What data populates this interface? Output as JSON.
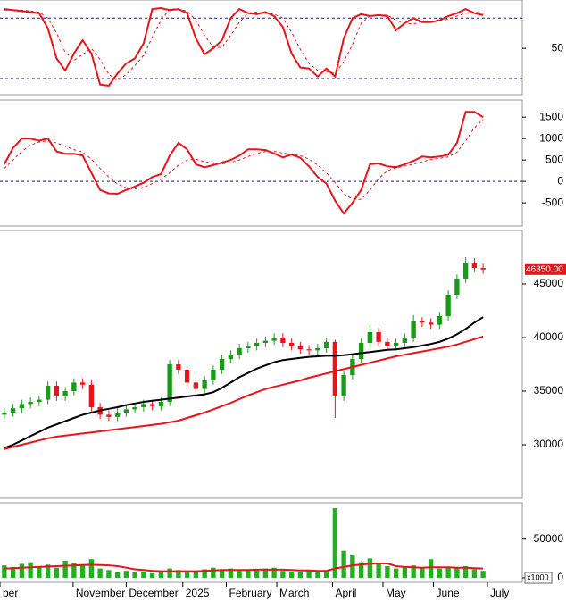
{
  "chart_data": [
    {
      "type": "line",
      "x": [
        0,
        1,
        2,
        3,
        4,
        5,
        6,
        7,
        8,
        9,
        10,
        11,
        12,
        13,
        14,
        15,
        16,
        17,
        18,
        19,
        20,
        21,
        22,
        23,
        24,
        25,
        26,
        27,
        28,
        29,
        30,
        31,
        32,
        33,
        34,
        35,
        36,
        37,
        38,
        39,
        40,
        41,
        42,
        43,
        44,
        45,
        46,
        47,
        48,
        49,
        50,
        51,
        52,
        53,
        54,
        55
      ],
      "xlim": [
        -0.5,
        59.5
      ],
      "ylim": [
        4,
        98
      ],
      "yticks": [
        50
      ],
      "reference_lines": [
        20,
        80
      ],
      "series": [
        {
          "color": "#e8141c",
          "style": "solid",
          "values": [
            89,
            88,
            87,
            86,
            85,
            70,
            40,
            28,
            45,
            58,
            45,
            14,
            13,
            25,
            35,
            40,
            55,
            89,
            90,
            88,
            89,
            85,
            60,
            44,
            50,
            58,
            80,
            89,
            85,
            84,
            86,
            82,
            71,
            45,
            31,
            30,
            22,
            30,
            22,
            60,
            80,
            84,
            82,
            83,
            82,
            68,
            75,
            80,
            76,
            76,
            78,
            82,
            85,
            89,
            85,
            83
          ]
        },
        {
          "color": "#e8141c",
          "style": "dashed",
          "values": [
            88,
            88,
            88,
            87,
            86,
            80,
            65,
            46,
            38,
            44,
            50,
            39,
            24,
            18,
            24,
            33,
            43,
            61,
            78,
            89,
            89,
            87,
            78,
            63,
            51,
            51,
            63,
            76,
            85,
            86,
            85,
            84,
            80,
            66,
            49,
            35,
            28,
            27,
            25,
            37,
            54,
            75,
            82,
            83,
            83,
            78,
            75,
            74,
            77,
            77,
            77,
            79,
            82,
            85,
            86,
            85
          ]
        }
      ]
    },
    {
      "type": "line",
      "x": [
        0,
        1,
        2,
        3,
        4,
        5,
        6,
        7,
        8,
        9,
        10,
        11,
        12,
        13,
        14,
        15,
        16,
        17,
        18,
        19,
        20,
        21,
        22,
        23,
        24,
        25,
        26,
        27,
        28,
        29,
        30,
        31,
        32,
        33,
        34,
        35,
        36,
        37,
        38,
        39,
        40,
        41,
        42,
        43,
        44,
        45,
        46,
        47,
        48,
        49,
        50,
        51,
        52,
        53,
        54,
        55
      ],
      "xlim": [
        -0.5,
        59.5
      ],
      "ylim": [
        -1040,
        1900
      ],
      "yticks": [
        -500,
        0,
        500,
        1000,
        1500
      ],
      "reference_lines": [
        0
      ],
      "series": [
        {
          "color": "#e8141c",
          "style": "solid",
          "values": [
            400,
            780,
            1000,
            1000,
            950,
            1000,
            700,
            645,
            645,
            600,
            200,
            -200,
            -280,
            -290,
            -200,
            -120,
            -30,
            100,
            170,
            600,
            900,
            750,
            400,
            330,
            380,
            440,
            500,
            600,
            750,
            750,
            730,
            650,
            560,
            625,
            550,
            350,
            100,
            -50,
            -450,
            -750,
            -500,
            -200,
            400,
            420,
            350,
            330,
            400,
            480,
            580,
            560,
            580,
            620,
            900,
            1625,
            1625,
            1500
          ]
        },
        {
          "color": "#e8141c",
          "style": "dashed",
          "values": [
            300,
            500,
            700,
            850,
            920,
            950,
            900,
            820,
            740,
            680,
            520,
            300,
            100,
            -60,
            -150,
            -180,
            -140,
            -50,
            50,
            200,
            380,
            500,
            520,
            460,
            420,
            410,
            440,
            500,
            580,
            650,
            700,
            700,
            660,
            630,
            600,
            520,
            380,
            200,
            -30,
            -280,
            -420,
            -420,
            -200,
            60,
            250,
            320,
            360,
            400,
            460,
            510,
            540,
            570,
            680,
            950,
            1250,
            1450
          ]
        }
      ]
    },
    {
      "type": "candlestick",
      "x": [
        0,
        1,
        2,
        3,
        4,
        5,
        6,
        7,
        8,
        9,
        10,
        11,
        12,
        13,
        14,
        15,
        16,
        17,
        18,
        19,
        20,
        21,
        22,
        23,
        24,
        25,
        26,
        27,
        28,
        29,
        30,
        31,
        32,
        33,
        34,
        35,
        36,
        37,
        38,
        39,
        40,
        41,
        42,
        43,
        44,
        45,
        46,
        47,
        48,
        49,
        50,
        51,
        52,
        53,
        54,
        55
      ],
      "xlim": [
        -0.5,
        59.5
      ],
      "ylim": [
        25000,
        50000
      ],
      "yticks": [
        30000,
        35000,
        40000,
        45000
      ],
      "up_color": "#1a9a1a",
      "down_color": "#e8141c",
      "open": [
        32800,
        33000,
        33400,
        33800,
        34000,
        34200,
        35500,
        34500,
        35000,
        35800,
        35600,
        33500,
        32800,
        32600,
        33000,
        33300,
        33500,
        33800,
        33600,
        34000,
        37500,
        37000,
        35800,
        35200,
        36000,
        37000,
        38000,
        38400,
        39000,
        39200,
        39500,
        39700,
        40000,
        39500,
        39200,
        38900,
        38800,
        39000,
        39600,
        34500,
        36500,
        38000,
        39500,
        40500,
        39600,
        39200,
        39500,
        40000,
        41500,
        41400,
        41200,
        42000,
        44000,
        45500,
        47000,
        46500
      ],
      "high": [
        33400,
        33800,
        34200,
        34400,
        34600,
        35900,
        35900,
        35400,
        36200,
        36200,
        36000,
        33900,
        33200,
        33400,
        33700,
        33900,
        34200,
        34200,
        34400,
        37900,
        37900,
        37400,
        36200,
        36400,
        37400,
        38400,
        38800,
        39400,
        39600,
        39900,
        40100,
        40400,
        40400,
        39900,
        39600,
        39300,
        39400,
        40000,
        39800,
        36900,
        38400,
        39900,
        41200,
        40900,
        40000,
        39900,
        40400,
        42100,
        41900,
        41800,
        42400,
        44400,
        45900,
        47500,
        47400,
        46900
      ],
      "low": [
        32400,
        32600,
        33000,
        33400,
        33600,
        33800,
        34100,
        34100,
        34600,
        35200,
        33100,
        32400,
        32200,
        32200,
        32600,
        32900,
        33100,
        33200,
        33200,
        33600,
        36600,
        35400,
        34800,
        34800,
        35600,
        36600,
        37600,
        38000,
        38600,
        38800,
        39100,
        39300,
        39100,
        38800,
        38500,
        38400,
        38400,
        38600,
        32500,
        34100,
        36100,
        37600,
        39100,
        39200,
        38800,
        38800,
        39100,
        39600,
        41000,
        40800,
        40800,
        41600,
        43600,
        45100,
        46100,
        45950
      ],
      "close": [
        33000,
        33400,
        33800,
        34000,
        34200,
        35500,
        34500,
        35000,
        35800,
        35600,
        33500,
        32800,
        32600,
        33000,
        33300,
        33500,
        33800,
        33600,
        34000,
        37500,
        37000,
        35800,
        35200,
        36000,
        37000,
        38000,
        38400,
        39000,
        39200,
        39500,
        39700,
        40000,
        39500,
        39200,
        38900,
        38800,
        39000,
        39600,
        34500,
        36500,
        38000,
        39500,
        40500,
        39600,
        39200,
        39500,
        40000,
        41500,
        41400,
        41200,
        42000,
        44000,
        45500,
        47000,
        46500,
        46350
      ],
      "overlays": [
        {
          "color": "#000000",
          "values": [
            29700,
            30000,
            30400,
            30800,
            31200,
            31600,
            31900,
            32200,
            32500,
            32800,
            33000,
            33200,
            33350,
            33500,
            33700,
            33850,
            34000,
            34100,
            34200,
            34300,
            34400,
            34500,
            34600,
            34700,
            34900,
            35300,
            35800,
            36300,
            36700,
            37100,
            37400,
            37700,
            37900,
            38000,
            38100,
            38200,
            38250,
            38300,
            38300,
            38350,
            38450,
            38550,
            38650,
            38750,
            38850,
            38900,
            39000,
            39100,
            39250,
            39400,
            39600,
            39900,
            40300,
            40800,
            41400,
            41900
          ]
        },
        {
          "color": "#e8141c",
          "values": [
            29600,
            29800,
            30000,
            30200,
            30400,
            30600,
            30750,
            30850,
            30950,
            31050,
            31150,
            31250,
            31350,
            31450,
            31550,
            31650,
            31750,
            31850,
            31950,
            32100,
            32250,
            32500,
            32750,
            33000,
            33300,
            33600,
            33900,
            34250,
            34600,
            34900,
            35200,
            35400,
            35600,
            35800,
            36000,
            36250,
            36450,
            36650,
            36850,
            37050,
            37250,
            37450,
            37650,
            37850,
            38050,
            38250,
            38400,
            38550,
            38700,
            38850,
            39000,
            39150,
            39350,
            39600,
            39850,
            40100
          ]
        }
      ],
      "last_label": {
        "value": 46350,
        "label": "46350.00"
      }
    },
    {
      "type": "bar",
      "x": [
        0,
        1,
        2,
        3,
        4,
        5,
        6,
        7,
        8,
        9,
        10,
        11,
        12,
        13,
        14,
        15,
        16,
        17,
        18,
        19,
        20,
        21,
        22,
        23,
        24,
        25,
        26,
        27,
        28,
        29,
        30,
        31,
        32,
        33,
        34,
        35,
        36,
        37,
        38,
        39,
        40,
        41,
        42,
        43,
        44,
        45,
        46,
        47,
        48,
        49,
        50,
        51,
        52,
        53,
        54,
        55
      ],
      "xlim": [
        -0.5,
        59.5
      ],
      "ylim": [
        -5800,
        97000
      ],
      "yticks": [
        0,
        50000
      ],
      "color": "#22b022",
      "unit_label": "x1000",
      "values": [
        16000,
        14000,
        18000,
        20000,
        15000,
        17000,
        13000,
        22000,
        19000,
        16000,
        24000,
        12000,
        10000,
        8000,
        9000,
        7000,
        8000,
        6000,
        7000,
        12000,
        10000,
        9000,
        8000,
        11000,
        13000,
        10000,
        12000,
        9000,
        11000,
        10000,
        12000,
        13000,
        9000,
        8000,
        7000,
        9000,
        8000,
        10000,
        90000,
        35000,
        30000,
        20000,
        25000,
        18000,
        15000,
        12000,
        14000,
        16000,
        13000,
        24000,
        12000,
        14000,
        13000,
        15000,
        11000,
        9000
      ],
      "overlay": {
        "color": "#e8141c",
        "values": [
          12000,
          12500,
          13000,
          13500,
          14000,
          14500,
          15000,
          15500,
          16000,
          16500,
          16800,
          16500,
          16000,
          15000,
          13000,
          11000,
          10000,
          9000,
          8500,
          8500,
          8500,
          8500,
          8500,
          9000,
          9500,
          10000,
          10000,
          10000,
          10000,
          10500,
          10500,
          10500,
          10500,
          10000,
          9500,
          9500,
          9000,
          9000,
          12000,
          14000,
          16000,
          17000,
          18000,
          18500,
          18500,
          15000,
          14000,
          13500,
          13000,
          13500,
          13500,
          13500,
          13000,
          13000,
          12500,
          12000
        ]
      },
      "xticks": [
        {
          "value": -0.5,
          "label": "ber"
        },
        {
          "value": 7.9,
          "label": "November"
        },
        {
          "value": 14,
          "label": "December"
        },
        {
          "value": 20.5,
          "label": "2025"
        },
        {
          "value": 25.5,
          "label": "February"
        },
        {
          "value": 31.3,
          "label": "March"
        },
        {
          "value": 37.7,
          "label": "April"
        },
        {
          "value": 43.5,
          "label": "May"
        },
        {
          "value": 49.3,
          "label": "June"
        },
        {
          "value": 55.5,
          "label": "July"
        }
      ]
    }
  ]
}
